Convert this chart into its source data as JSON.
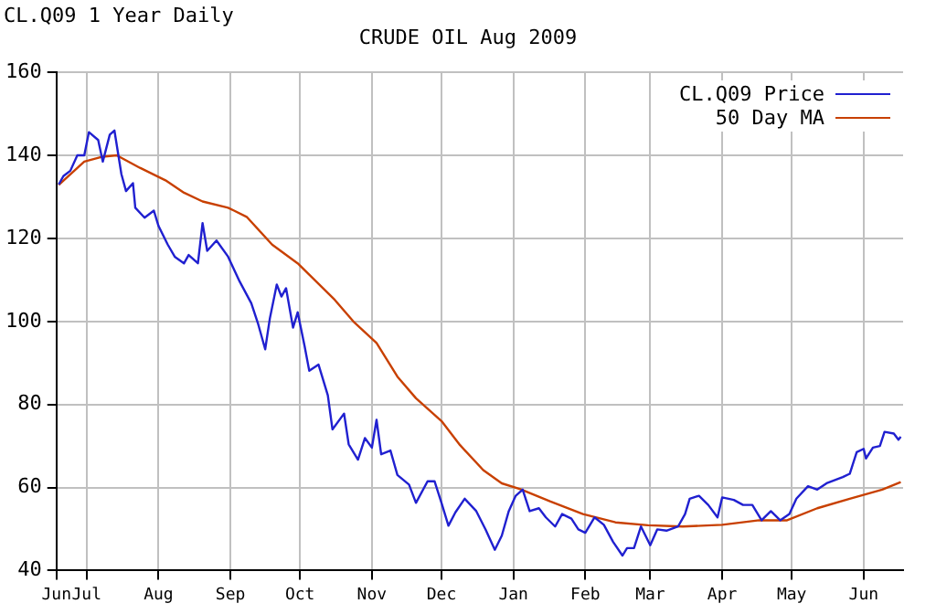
{
  "chart_data": {
    "type": "line",
    "title": "CRUDE OIL Aug 2009",
    "subtitle": "CL.Q09 1 Year Daily",
    "xlim": [
      "2008-06-18",
      "2009-06-18"
    ],
    "xticks": [
      {
        "value": "2008-06-18",
        "label": "Jun"
      },
      {
        "value": "2008-07-01",
        "label": "Jul"
      },
      {
        "value": "2008-08-01",
        "label": "Aug"
      },
      {
        "value": "2008-09-01",
        "label": "Sep"
      },
      {
        "value": "2008-10-01",
        "label": "Oct"
      },
      {
        "value": "2008-11-01",
        "label": "Nov"
      },
      {
        "value": "2008-12-01",
        "label": "Dec"
      },
      {
        "value": "2009-01-01",
        "label": "Jan"
      },
      {
        "value": "2009-02-01",
        "label": "Feb"
      },
      {
        "value": "2009-03-01",
        "label": "Mar"
      },
      {
        "value": "2009-04-01",
        "label": "Apr"
      },
      {
        "value": "2009-05-01",
        "label": "May"
      },
      {
        "value": "2009-06-01",
        "label": "Jun"
      }
    ],
    "ylim": [
      40,
      160
    ],
    "yticks": [
      40,
      60,
      80,
      100,
      120,
      140,
      160
    ],
    "grid": true,
    "legend": "top right",
    "marker": "none",
    "line_style": "solid",
    "series": [
      {
        "name": "CL.Q09 Price",
        "color": "#2020d0",
        "x": [
          "2008-06-19",
          "2008-06-21",
          "2008-06-24",
          "2008-06-27",
          "2008-06-30",
          "2008-07-02",
          "2008-07-06",
          "2008-07-08",
          "2008-07-11",
          "2008-07-13",
          "2008-07-16",
          "2008-07-18",
          "2008-07-21",
          "2008-07-22",
          "2008-07-26",
          "2008-07-30",
          "2008-08-01",
          "2008-08-05",
          "2008-08-08",
          "2008-08-12",
          "2008-08-14",
          "2008-08-18",
          "2008-08-20",
          "2008-08-22",
          "2008-08-26",
          "2008-08-31",
          "2008-09-05",
          "2008-09-10",
          "2008-09-13",
          "2008-09-16",
          "2008-09-18",
          "2008-09-21",
          "2008-09-23",
          "2008-09-25",
          "2008-09-28",
          "2008-09-30",
          "2008-10-03",
          "2008-10-05",
          "2008-10-09",
          "2008-10-13",
          "2008-10-15",
          "2008-10-20",
          "2008-10-22",
          "2008-10-26",
          "2008-10-29",
          "2008-11-01",
          "2008-11-03",
          "2008-11-05",
          "2008-11-09",
          "2008-11-12",
          "2008-11-17",
          "2008-11-20",
          "2008-11-25",
          "2008-11-28",
          "2008-12-01",
          "2008-12-04",
          "2008-12-07",
          "2008-12-11",
          "2008-12-16",
          "2008-12-20",
          "2008-12-24",
          "2008-12-27",
          "2008-12-30",
          "2009-01-02",
          "2009-01-05",
          "2009-01-08",
          "2009-01-12",
          "2009-01-15",
          "2009-01-19",
          "2009-01-22",
          "2009-01-26",
          "2009-01-29",
          "2009-02-01",
          "2009-02-05",
          "2009-02-09",
          "2009-02-13",
          "2009-02-17",
          "2009-02-19",
          "2009-02-22",
          "2009-02-25",
          "2009-03-01",
          "2009-03-04",
          "2009-03-08",
          "2009-03-13",
          "2009-03-16",
          "2009-03-18",
          "2009-03-22",
          "2009-03-26",
          "2009-03-30",
          "2009-04-01",
          "2009-04-06",
          "2009-04-10",
          "2009-04-14",
          "2009-04-18",
          "2009-04-22",
          "2009-04-26",
          "2009-04-30",
          "2009-05-03",
          "2009-05-08",
          "2009-05-12",
          "2009-05-16",
          "2009-05-23",
          "2009-05-26",
          "2009-05-29",
          "2009-06-01",
          "2009-06-02",
          "2009-06-05",
          "2009-06-08",
          "2009-06-10",
          "2009-06-14",
          "2009-06-16",
          "2009-06-17"
        ],
        "values": [
          133,
          135,
          136.3,
          140,
          140,
          145.6,
          143.7,
          138.5,
          145,
          146,
          135.5,
          131.4,
          133.3,
          127.4,
          125,
          126.7,
          123,
          118.5,
          115.6,
          114,
          116,
          114,
          123.7,
          117,
          119.5,
          115.6,
          109.6,
          104.4,
          99.3,
          93.3,
          100.7,
          108.9,
          106,
          108,
          98.5,
          102.2,
          94,
          88.1,
          89.6,
          82.2,
          74,
          77.8,
          70.4,
          66.7,
          71.9,
          69.6,
          76.3,
          68,
          68.9,
          63,
          60.7,
          56.3,
          61.5,
          61.5,
          56.3,
          50.8,
          54,
          57.3,
          54.3,
          49.9,
          45,
          48.4,
          54.3,
          58,
          59.5,
          54.3,
          55,
          52.8,
          50.6,
          53.6,
          52.5,
          49.9,
          49.1,
          52.8,
          51,
          46.9,
          43.6,
          45.4,
          45.4,
          50.6,
          46.1,
          49.9,
          49.6,
          50.6,
          53.6,
          57.3,
          58,
          55.8,
          52.8,
          57.6,
          57,
          55.8,
          55.8,
          52.1,
          54.3,
          52.1,
          53.6,
          57.3,
          60.3,
          59.5,
          61,
          62.5,
          63.3,
          68.5,
          69.3,
          67,
          69.6,
          70,
          73.4,
          73,
          71.5,
          72.2
        ]
      },
      {
        "name": "50 Day MA",
        "color": "#c84000",
        "x": [
          "2008-06-19",
          "2008-06-30",
          "2008-07-08",
          "2008-07-14",
          "2008-07-24",
          "2008-08-04",
          "2008-08-12",
          "2008-08-20",
          "2008-08-31",
          "2008-09-08",
          "2008-09-19",
          "2008-09-30",
          "2008-10-08",
          "2008-10-16",
          "2008-10-24",
          "2008-11-03",
          "2008-11-12",
          "2008-11-20",
          "2008-12-01",
          "2008-12-09",
          "2008-12-19",
          "2008-12-27",
          "2009-01-04",
          "2009-01-17",
          "2009-01-31",
          "2009-02-14",
          "2009-02-28",
          "2009-03-15",
          "2009-04-01",
          "2009-04-17",
          "2009-04-29",
          "2009-05-12",
          "2009-05-26",
          "2009-06-09",
          "2009-06-17"
        ],
        "values": [
          132.9,
          138.5,
          139.7,
          140,
          137,
          134,
          131,
          128.9,
          127.4,
          125.2,
          118.5,
          114,
          109.6,
          105.2,
          100,
          94.8,
          86.7,
          81.5,
          76,
          70.2,
          64.2,
          61,
          59.6,
          56.6,
          53.6,
          51.6,
          50.9,
          50.6,
          51,
          52.1,
          52.1,
          55,
          57.3,
          59.5,
          61.3
        ]
      }
    ]
  }
}
